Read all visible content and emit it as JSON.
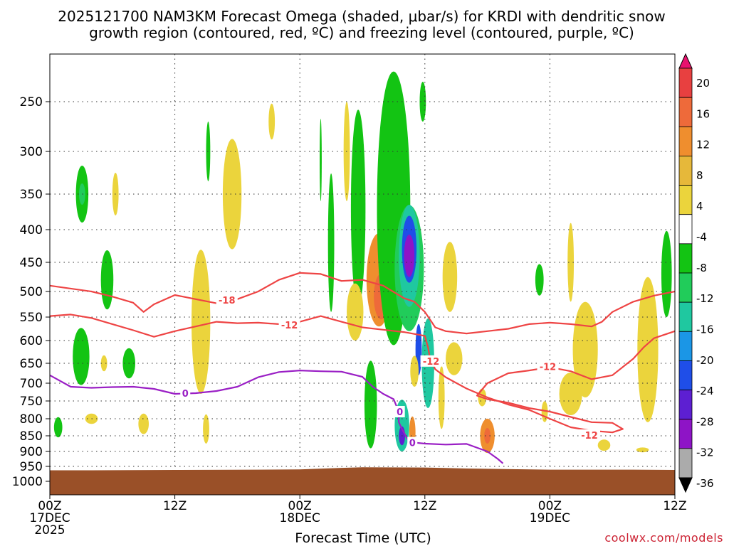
{
  "chart_data": {
    "type": "heatmap",
    "title_line1": "2025121700 NAM3KM Forecast Omega (shaded, μbar/s) for KRDI with dendritic snow",
    "title_line2": "growth region (contoured, red, ºC) and freezing level (contoured, purple, ºC)",
    "xlabel": "Forecast Time (UTC)",
    "ylabel": "",
    "credit": "coolwx.com/models",
    "x_range_hours": [
      0,
      60
    ],
    "y_range_mb": [
      200,
      1050
    ],
    "x_ticks": [
      {
        "hour": 0,
        "line1": "00Z",
        "line2": "17DEC",
        "line3": "2025"
      },
      {
        "hour": 12,
        "line1": "12Z",
        "line2": "",
        "line3": ""
      },
      {
        "hour": 24,
        "line1": "00Z",
        "line2": "18DEC",
        "line3": ""
      },
      {
        "hour": 36,
        "line1": "12Z",
        "line2": "",
        "line3": ""
      },
      {
        "hour": 48,
        "line1": "00Z",
        "line2": "19DEC",
        "line3": ""
      },
      {
        "hour": 60,
        "line1": "12Z",
        "line2": "",
        "line3": ""
      }
    ],
    "y_ticks": [
      {
        "p": 250,
        "label": "250"
      },
      {
        "p": 300,
        "label": "300"
      },
      {
        "p": 350,
        "label": "350"
      },
      {
        "p": 400,
        "label": "400"
      },
      {
        "p": 450,
        "label": "450"
      },
      {
        "p": 500,
        "label": "500"
      },
      {
        "p": 550,
        "label": "550"
      },
      {
        "p": 600,
        "label": "600"
      },
      {
        "p": 650,
        "label": "650"
      },
      {
        "p": 700,
        "label": "700"
      },
      {
        "p": 750,
        "label": "750"
      },
      {
        "p": 800,
        "label": "800"
      },
      {
        "p": 850,
        "label": "850"
      },
      {
        "p": 900,
        "label": "900"
      },
      {
        "p": 950,
        "label": "950"
      },
      {
        "p": 1000,
        "label": "1000"
      }
    ],
    "colorbar": {
      "labels": [
        "20",
        "16",
        "12",
        "8",
        "4",
        "-4",
        "-8",
        "-12",
        "-16",
        "-20",
        "-24",
        "-28",
        "-32",
        "-36"
      ],
      "colors": [
        "#e8116e",
        "#e84040",
        "#ee6a3a",
        "#ef8e2e",
        "#e6b83a",
        "#ebd43c",
        "#ffffff",
        "#13c413",
        "#21cc5a",
        "#1fc8a0",
        "#1b96e6",
        "#1f4ee8",
        "#5d1fd2",
        "#8e14c6",
        "#ababab",
        "#000000"
      ]
    },
    "terrain": {
      "color": "#9a5028",
      "surface_mb": [
        [
          0,
          963
        ],
        [
          4,
          963
        ],
        [
          12,
          962
        ],
        [
          20,
          961
        ],
        [
          24,
          960
        ],
        [
          28,
          955
        ],
        [
          30,
          953
        ],
        [
          36,
          954
        ],
        [
          40,
          957
        ],
        [
          48,
          961
        ],
        [
          56,
          961
        ],
        [
          60,
          962
        ]
      ]
    },
    "omega_cells": [
      {
        "h": 3.1,
        "p": 350,
        "dh": 0.6,
        "dp": 40,
        "v": -6
      },
      {
        "h": 3.1,
        "p": 350,
        "dh": 0.3,
        "dp": 15,
        "v": -8
      },
      {
        "h": 6.3,
        "p": 350,
        "dh": 0.3,
        "dp": 30,
        "v": 5
      },
      {
        "h": 5.5,
        "p": 480,
        "dh": 0.6,
        "dp": 55,
        "v": -7
      },
      {
        "h": 3.0,
        "p": 635,
        "dh": 0.8,
        "dp": 70,
        "v": -7
      },
      {
        "h": 7.6,
        "p": 650,
        "dh": 0.6,
        "dp": 38,
        "v": -7
      },
      {
        "h": 5.2,
        "p": 650,
        "dh": 0.3,
        "dp": 20,
        "v": 5
      },
      {
        "h": 0.8,
        "p": 825,
        "dh": 0.4,
        "dp": 30,
        "v": -7
      },
      {
        "h": 4.0,
        "p": 800,
        "dh": 0.6,
        "dp": 15,
        "v": 5
      },
      {
        "h": 9.0,
        "p": 815,
        "dh": 0.5,
        "dp": 30,
        "v": 5
      },
      {
        "h": 14.5,
        "p": 560,
        "dh": 0.9,
        "dp": 170,
        "v": 6
      },
      {
        "h": 15.0,
        "p": 830,
        "dh": 0.3,
        "dp": 45,
        "v": 5
      },
      {
        "h": 17.5,
        "p": 350,
        "dh": 0.9,
        "dp": 80,
        "v": 6
      },
      {
        "h": 15.2,
        "p": 300,
        "dh": 0.2,
        "dp": 35,
        "v": -6
      },
      {
        "h": 21.3,
        "p": 270,
        "dh": 0.3,
        "dp": 18,
        "v": 5
      },
      {
        "h": 26.0,
        "p": 310,
        "dh": 0.1,
        "dp": 50,
        "v": -6
      },
      {
        "h": 27.0,
        "p": 420,
        "dh": 0.3,
        "dp": 120,
        "v": -7
      },
      {
        "h": 29.6,
        "p": 370,
        "dh": 0.7,
        "dp": 160,
        "v": -7
      },
      {
        "h": 28.5,
        "p": 300,
        "dh": 0.3,
        "dp": 60,
        "v": 5
      },
      {
        "h": 31.6,
        "p": 480,
        "dh": 1.2,
        "dp": 90,
        "v": 8
      },
      {
        "h": 31.8,
        "p": 510,
        "dh": 0.7,
        "dp": 45,
        "v": 12
      },
      {
        "h": 29.3,
        "p": 540,
        "dh": 0.8,
        "dp": 60,
        "v": 5
      },
      {
        "h": 33.0,
        "p": 370,
        "dh": 1.6,
        "dp": 240,
        "v": -7
      },
      {
        "h": 35.8,
        "p": 250,
        "dh": 0.3,
        "dp": 20,
        "v": -7
      },
      {
        "h": 34.5,
        "p": 460,
        "dh": 1.4,
        "dp": 120,
        "v": -10
      },
      {
        "h": 34.5,
        "p": 440,
        "dh": 1.0,
        "dp": 90,
        "v": -15
      },
      {
        "h": 34.5,
        "p": 430,
        "dh": 0.7,
        "dp": 55,
        "v": -23
      },
      {
        "h": 34.5,
        "p": 440,
        "dh": 0.5,
        "dp": 35,
        "v": -30
      },
      {
        "h": 35.4,
        "p": 620,
        "dh": 0.3,
        "dp": 60,
        "v": -22
      },
      {
        "h": 36.3,
        "p": 650,
        "dh": 0.6,
        "dp": 120,
        "v": -12
      },
      {
        "h": 35.0,
        "p": 670,
        "dh": 0.4,
        "dp": 40,
        "v": 5
      },
      {
        "h": 30.8,
        "p": 760,
        "dh": 0.6,
        "dp": 130,
        "v": -7
      },
      {
        "h": 33.8,
        "p": 820,
        "dh": 0.7,
        "dp": 80,
        "v": -12
      },
      {
        "h": 33.8,
        "p": 850,
        "dh": 0.3,
        "dp": 30,
        "v": -25
      },
      {
        "h": 34.8,
        "p": 840,
        "dh": 0.3,
        "dp": 50,
        "v": 10
      },
      {
        "h": 38.4,
        "p": 475,
        "dh": 0.7,
        "dp": 65,
        "v": 5
      },
      {
        "h": 38.8,
        "p": 640,
        "dh": 0.8,
        "dp": 40,
        "v": 5
      },
      {
        "h": 37.6,
        "p": 740,
        "dh": 0.3,
        "dp": 90,
        "v": 5
      },
      {
        "h": 41.5,
        "p": 740,
        "dh": 0.4,
        "dp": 25,
        "v": 5
      },
      {
        "h": 42.0,
        "p": 850,
        "dh": 0.7,
        "dp": 55,
        "v": 8
      },
      {
        "h": 42.0,
        "p": 850,
        "dh": 0.3,
        "dp": 25,
        "v": 12
      },
      {
        "h": 47.0,
        "p": 480,
        "dh": 0.4,
        "dp": 28,
        "v": -7
      },
      {
        "h": 50.0,
        "p": 450,
        "dh": 0.3,
        "dp": 70,
        "v": 5
      },
      {
        "h": 51.4,
        "p": 620,
        "dh": 1.2,
        "dp": 120,
        "v": 6
      },
      {
        "h": 50.0,
        "p": 730,
        "dh": 1.1,
        "dp": 60,
        "v": 5
      },
      {
        "h": 47.5,
        "p": 780,
        "dh": 0.3,
        "dp": 30,
        "v": 5
      },
      {
        "h": 53.2,
        "p": 880,
        "dh": 0.6,
        "dp": 18,
        "v": 5
      },
      {
        "h": 57.4,
        "p": 620,
        "dh": 1.0,
        "dp": 190,
        "v": 5
      },
      {
        "h": 59.2,
        "p": 470,
        "dh": 0.5,
        "dp": 80,
        "v": -7
      },
      {
        "h": 56.9,
        "p": 895,
        "dh": 0.6,
        "dp": 8,
        "v": 5
      }
    ],
    "contours": [
      {
        "name": "dgz-upper",
        "label": "-18",
        "color": "#ee4444",
        "points": [
          [
            0,
            490
          ],
          [
            4,
            500
          ],
          [
            6,
            510
          ],
          [
            8,
            522
          ],
          [
            9,
            540
          ],
          [
            10,
            525
          ],
          [
            12,
            507
          ],
          [
            14,
            515
          ],
          [
            16,
            523
          ],
          [
            18,
            515
          ],
          [
            20,
            500
          ],
          [
            22,
            480
          ],
          [
            24,
            468
          ],
          [
            26,
            470
          ],
          [
            28,
            482
          ],
          [
            30,
            480
          ],
          [
            32,
            490
          ],
          [
            34,
            513
          ],
          [
            35,
            520
          ],
          [
            36,
            540
          ],
          [
            37,
            572
          ],
          [
            38,
            580
          ],
          [
            40,
            585
          ],
          [
            42,
            580
          ],
          [
            44,
            575
          ],
          [
            46,
            565
          ],
          [
            48,
            562
          ],
          [
            50,
            565
          ],
          [
            52,
            570
          ],
          [
            53,
            560
          ],
          [
            54,
            540
          ],
          [
            56,
            520
          ],
          [
            58,
            508
          ],
          [
            60,
            500
          ]
        ],
        "label_at": [
          17,
          517
        ]
      },
      {
        "name": "dgz-lower",
        "label": "-12",
        "color": "#ee4444",
        "points": [
          [
            0,
            548
          ],
          [
            2,
            545
          ],
          [
            4,
            552
          ],
          [
            6,
            565
          ],
          [
            8,
            578
          ],
          [
            10,
            592
          ],
          [
            12,
            580
          ],
          [
            14,
            570
          ],
          [
            16,
            560
          ],
          [
            18,
            563
          ],
          [
            20,
            562
          ],
          [
            22,
            565
          ],
          [
            24,
            560
          ],
          [
            26,
            548
          ],
          [
            28,
            560
          ],
          [
            30,
            572
          ],
          [
            32,
            577
          ],
          [
            34,
            582
          ],
          [
            36,
            590
          ],
          [
            36.3,
            615
          ],
          [
            36.5,
            640
          ],
          [
            37,
            665
          ],
          [
            38,
            685
          ],
          [
            40,
            715
          ],
          [
            42,
            740
          ],
          [
            44,
            760
          ],
          [
            46,
            775
          ],
          [
            48,
            800
          ],
          [
            50,
            825
          ],
          [
            52,
            835
          ],
          [
            54,
            840
          ],
          [
            55,
            830
          ],
          [
            54,
            812
          ],
          [
            52,
            810
          ],
          [
            50,
            795
          ],
          [
            48,
            780
          ],
          [
            46,
            770
          ],
          [
            44,
            755
          ],
          [
            42,
            745
          ],
          [
            41,
            735
          ],
          [
            42,
            700
          ],
          [
            44,
            675
          ],
          [
            46,
            668
          ],
          [
            48,
            660
          ],
          [
            50,
            670
          ],
          [
            52,
            690
          ],
          [
            54,
            680
          ],
          [
            56,
            640
          ],
          [
            57,
            615
          ],
          [
            58,
            595
          ],
          [
            60,
            580
          ]
        ],
        "label_at": [
          23,
          567
        ],
        "label2": "-12",
        "label2_at": [
          36.6,
          645
        ],
        "label3": "-12",
        "label3_at": [
          47.8,
          658
        ],
        "label4": "-12",
        "label4_at": [
          51.8,
          848
        ]
      },
      {
        "name": "freezing",
        "label": "0",
        "color": "#9a1fc5",
        "points": [
          [
            0,
            680
          ],
          [
            2,
            710
          ],
          [
            4,
            713
          ],
          [
            6,
            711
          ],
          [
            8,
            710
          ],
          [
            10,
            716
          ],
          [
            12,
            730
          ],
          [
            14,
            728
          ],
          [
            16,
            722
          ],
          [
            18,
            710
          ],
          [
            20,
            685
          ],
          [
            22,
            672
          ],
          [
            24,
            668
          ],
          [
            26,
            670
          ],
          [
            28,
            671
          ],
          [
            30,
            684
          ],
          [
            31,
            710
          ],
          [
            32,
            730
          ],
          [
            33,
            745
          ],
          [
            33.5,
            780
          ],
          [
            33.5,
            810
          ],
          [
            33.8,
            830
          ],
          [
            34.5,
            870
          ],
          [
            36,
            875
          ],
          [
            38,
            878
          ],
          [
            40,
            876
          ],
          [
            42,
            900
          ],
          [
            43,
            925
          ],
          [
            43.5,
            940
          ]
        ],
        "label_at": [
          13,
          728
        ],
        "label2": "0",
        "label2_at": [
          33.6,
          780
        ],
        "label3": "0",
        "label3_at": [
          34.8,
          872
        ]
      }
    ]
  }
}
